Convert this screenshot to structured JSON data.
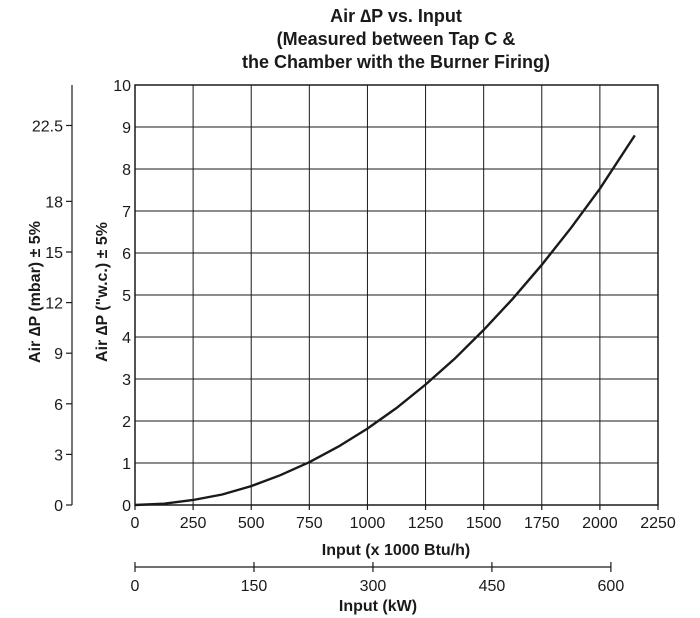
{
  "chart_data": {
    "type": "line",
    "title": [
      "Air ∆P vs. Input",
      "(Measured between Tap C &",
      "the Chamber with the Burner Firing)"
    ],
    "xlabel": "Input (x 1000 Btu/h)",
    "ylabel": "Air ∆P (\"w.c.) ± 5%",
    "xlim": [
      0,
      2250
    ],
    "ylim": [
      0,
      10
    ],
    "xticks": [
      "0",
      "250",
      "500",
      "750",
      "1000",
      "1250",
      "1500",
      "1750",
      "2000",
      "2250"
    ],
    "yticks": [
      "0",
      "1",
      "2",
      "3",
      "4",
      "5",
      "6",
      "7",
      "8",
      "9",
      "10"
    ],
    "grid": true,
    "secondary_x_axis": {
      "label": "Input (kW)",
      "lim": [
        0,
        659.4
      ],
      "ticks": [
        {
          "value": 0,
          "label": "0"
        },
        {
          "value": 150,
          "label": "150"
        },
        {
          "value": 300,
          "label": "300"
        },
        {
          "value": 450,
          "label": "450"
        },
        {
          "value": 600,
          "label": "600"
        }
      ]
    },
    "secondary_y_axis": {
      "label": "Air ∆P (mbar) ± 5%",
      "lim": [
        0,
        24.9
      ],
      "ticks": [
        {
          "value": 0,
          "label": "0"
        },
        {
          "value": 3,
          "label": "3"
        },
        {
          "value": 6,
          "label": "6"
        },
        {
          "value": 9,
          "label": "9"
        },
        {
          "value": 12,
          "label": "12"
        },
        {
          "value": 15,
          "label": "15"
        },
        {
          "value": 18,
          "label": "18"
        },
        {
          "value": 22.5,
          "label": "22.5"
        }
      ]
    },
    "series": [
      {
        "x": [
          0,
          125,
          250,
          375,
          500,
          625,
          750,
          875,
          1000,
          1125,
          1250,
          1375,
          1500,
          1625,
          1750,
          1875,
          2000,
          2150
        ],
        "y": [
          0,
          0.03,
          0.12,
          0.25,
          0.45,
          0.71,
          1.02,
          1.39,
          1.82,
          2.31,
          2.87,
          3.48,
          4.17,
          4.91,
          5.72,
          6.59,
          7.53,
          8.8
        ]
      }
    ]
  }
}
